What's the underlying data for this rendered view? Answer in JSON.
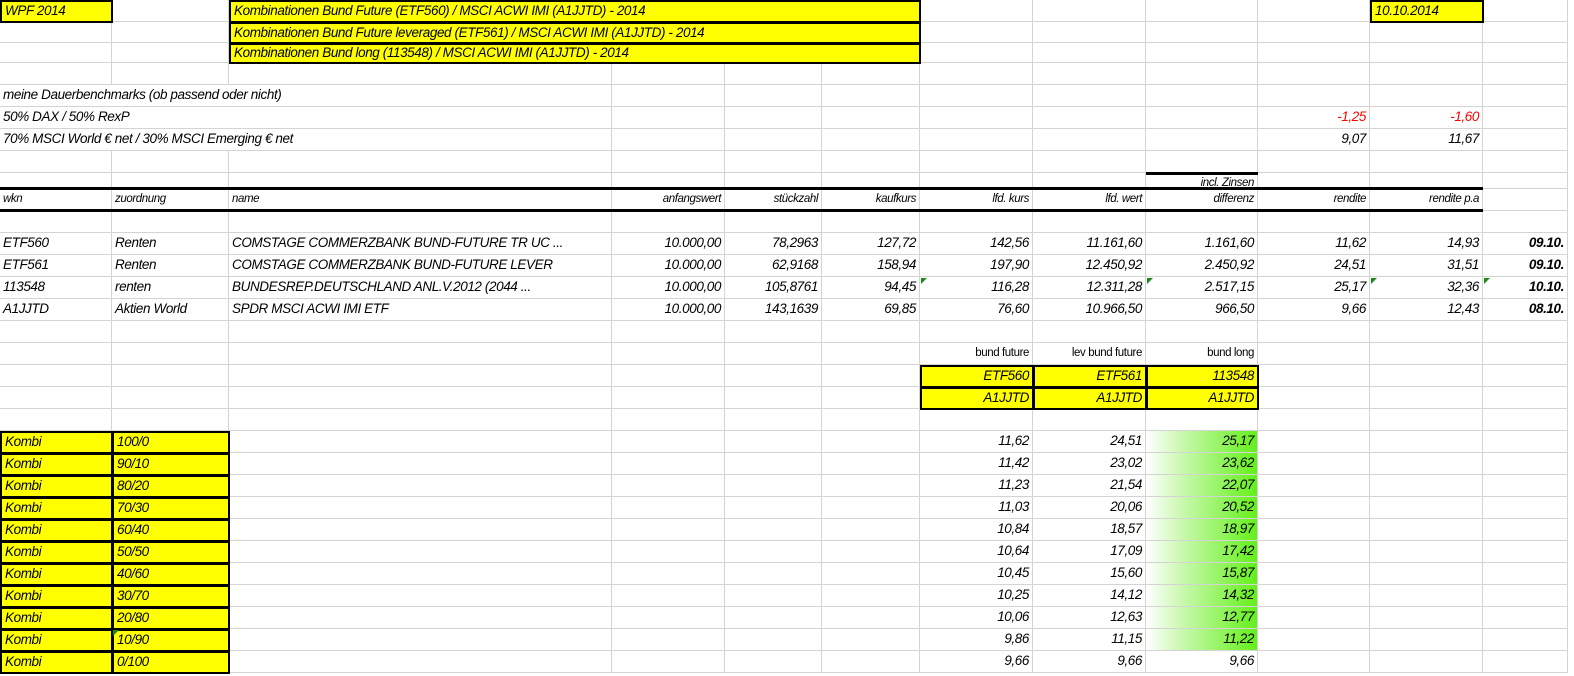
{
  "header": {
    "title": "WPF 2014",
    "combos": [
      "Kombinationen Bund Future (ETF560) / MSCI ACWI IMI (A1JJTD) - 2014",
      "Kombinationen Bund Future leveraged (ETF561) / MSCI ACWI IMI (A1JJTD) - 2014",
      "Kombinationen Bund long (113548) / MSCI ACWI IMI (A1JJTD) - 2014"
    ],
    "date": "10.10.2014"
  },
  "benchmarks": {
    "heading": "meine Dauerbenchmarks (ob passend oder nicht)",
    "rows": [
      {
        "label": "50% DAX / 50% RexP",
        "rendite": "-1,25",
        "rendite_pa": "-1,60",
        "negative": true
      },
      {
        "label": "70% MSCI World € net / 30% MSCI Emerging € net",
        "rendite": "9,07",
        "rendite_pa": "11,67",
        "negative": false
      }
    ]
  },
  "positions": {
    "note": "incl. Zinsen",
    "columns": [
      "wkn",
      "zuordnung",
      "name",
      "anfangswert",
      "stückzahl",
      "kaufkurs",
      "lfd. kurs",
      "lfd. wert",
      "differenz",
      "rendite",
      "rendite p.a"
    ],
    "rows": [
      [
        "ETF560",
        "Renten",
        "COMSTAGE COMMERZBANK BUND-FUTURE TR UC ...",
        "10.000,00",
        "78,2963",
        "127,72",
        "142,56",
        "11.161,60",
        "1.161,60",
        "11,62",
        "14,93",
        "09.10."
      ],
      [
        "ETF561",
        "Renten",
        "COMSTAGE COMMERZBANK BUND-FUTURE LEVER",
        "10.000,00",
        "62,9168",
        "158,94",
        "197,90",
        "12.450,92",
        "2.450,92",
        "24,51",
        "31,51",
        "09.10."
      ],
      [
        "113548",
        "renten",
        "BUNDESREP.DEUTSCHLAND ANL.V.2012 (2044 ...",
        "10.000,00",
        "105,8761",
        "94,45",
        "116,28",
        "12.311,28",
        "2.517,15",
        "25,17",
        "32,36",
        "10.10."
      ],
      [
        "A1JJTD",
        "Aktien World",
        "SPDR MSCI ACWI IMI ETF",
        "10.000,00",
        "143,1639",
        "69,85",
        "76,60",
        "10.966,50",
        "966,50",
        "9,66",
        "12,43",
        "08.10."
      ]
    ]
  },
  "kombi": {
    "headers": [
      "bund future",
      "lev bund future",
      "bund long"
    ],
    "pairs": [
      [
        "ETF560",
        "A1JJTD"
      ],
      [
        "ETF561",
        "A1JJTD"
      ],
      [
        "113548",
        "A1JJTD"
      ]
    ],
    "rows": [
      {
        "label": "Kombi",
        "ratio": "100/0",
        "values": [
          "11,62",
          "24,51",
          "25,17"
        ]
      },
      {
        "label": "Kombi",
        "ratio": "90/10",
        "values": [
          "11,42",
          "23,02",
          "23,62"
        ]
      },
      {
        "label": "Kombi",
        "ratio": "80/20",
        "values": [
          "11,23",
          "21,54",
          "22,07"
        ]
      },
      {
        "label": "Kombi",
        "ratio": "70/30",
        "values": [
          "11,03",
          "20,06",
          "20,52"
        ]
      },
      {
        "label": "Kombi",
        "ratio": "60/40",
        "values": [
          "10,84",
          "18,57",
          "18,97"
        ]
      },
      {
        "label": "Kombi",
        "ratio": "50/50",
        "values": [
          "10,64",
          "17,09",
          "17,42"
        ]
      },
      {
        "label": "Kombi",
        "ratio": "40/60",
        "values": [
          "10,45",
          "15,60",
          "15,87"
        ]
      },
      {
        "label": "Kombi",
        "ratio": "30/70",
        "values": [
          "10,25",
          "14,12",
          "14,32"
        ]
      },
      {
        "label": "Kombi",
        "ratio": "20/80",
        "values": [
          "10,06",
          "12,63",
          "12,77"
        ]
      },
      {
        "label": "Kombi",
        "ratio": "10/90",
        "values": [
          "9,86",
          "11,15",
          "11,22"
        ]
      },
      {
        "label": "Kombi",
        "ratio": "0/100",
        "values": [
          "9,66",
          "9,66",
          "9,66"
        ]
      }
    ]
  },
  "colors": {
    "highlight": "#ffff00",
    "negative": "#ff0000",
    "databar": "#63f01a",
    "gridline": "#d4d4d4",
    "comment_marker": "#1b8a1b"
  }
}
